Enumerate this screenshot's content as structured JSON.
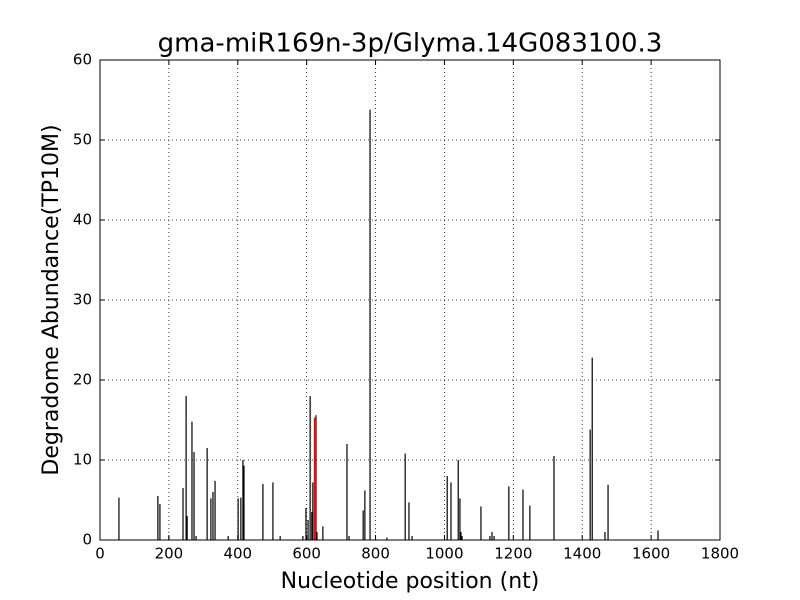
{
  "chart_data": {
    "type": "bar",
    "title": "gma-miR169n-3p/Glyma.14G083100.3",
    "xlabel": "Nucleotide position (nt)",
    "ylabel": "Degradome Abundance(TP10M)",
    "x": [
      55,
      168,
      174,
      200,
      241,
      250,
      253,
      267,
      273,
      279,
      311,
      322,
      328,
      334,
      372,
      401,
      409,
      415,
      418,
      473,
      502,
      523,
      589,
      598,
      604,
      610,
      615,
      618,
      627,
      630,
      647,
      717,
      723,
      764,
      769,
      784,
      833,
      886,
      897,
      906,
      1008,
      1019,
      1040,
      1045,
      1048,
      1051,
      1106,
      1132,
      1138,
      1144,
      1187,
      1228,
      1248,
      1318,
      1423,
      1429,
      1466,
      1475,
      1620
    ],
    "values": [
      5.3,
      5.5,
      4.5,
      0.5,
      6.5,
      18,
      3,
      14.8,
      11,
      0.5,
      11.5,
      5.2,
      6,
      7.4,
      0.5,
      5.2,
      5.3,
      10,
      9.3,
      7,
      7.2,
      0.5,
      0.5,
      4,
      2.5,
      18,
      3.5,
      7.2,
      15.6,
      1,
      1.7,
      12,
      0.5,
      3.7,
      6.2,
      53.8,
      0.3,
      10.8,
      4.7,
      0.5,
      8,
      7.2,
      10,
      5.2,
      1,
      0.5,
      4.2,
      0.5,
      1,
      0.5,
      6.7,
      6.3,
      4.3,
      10.5,
      13.8,
      22.8,
      1,
      6.9,
      1.2
    ],
    "color": "#000000",
    "highlight": {
      "x": [
        624
      ],
      "values": [
        15.3
      ],
      "color": "#ff0000"
    },
    "xlim": [
      0,
      1800
    ],
    "xticks": [
      0,
      200,
      400,
      600,
      800,
      1000,
      1200,
      1400,
      1600,
      1800
    ],
    "ylim": [
      0,
      60
    ],
    "yticks": [
      0,
      10,
      20,
      30,
      40,
      50,
      60
    ],
    "grid": true
  }
}
